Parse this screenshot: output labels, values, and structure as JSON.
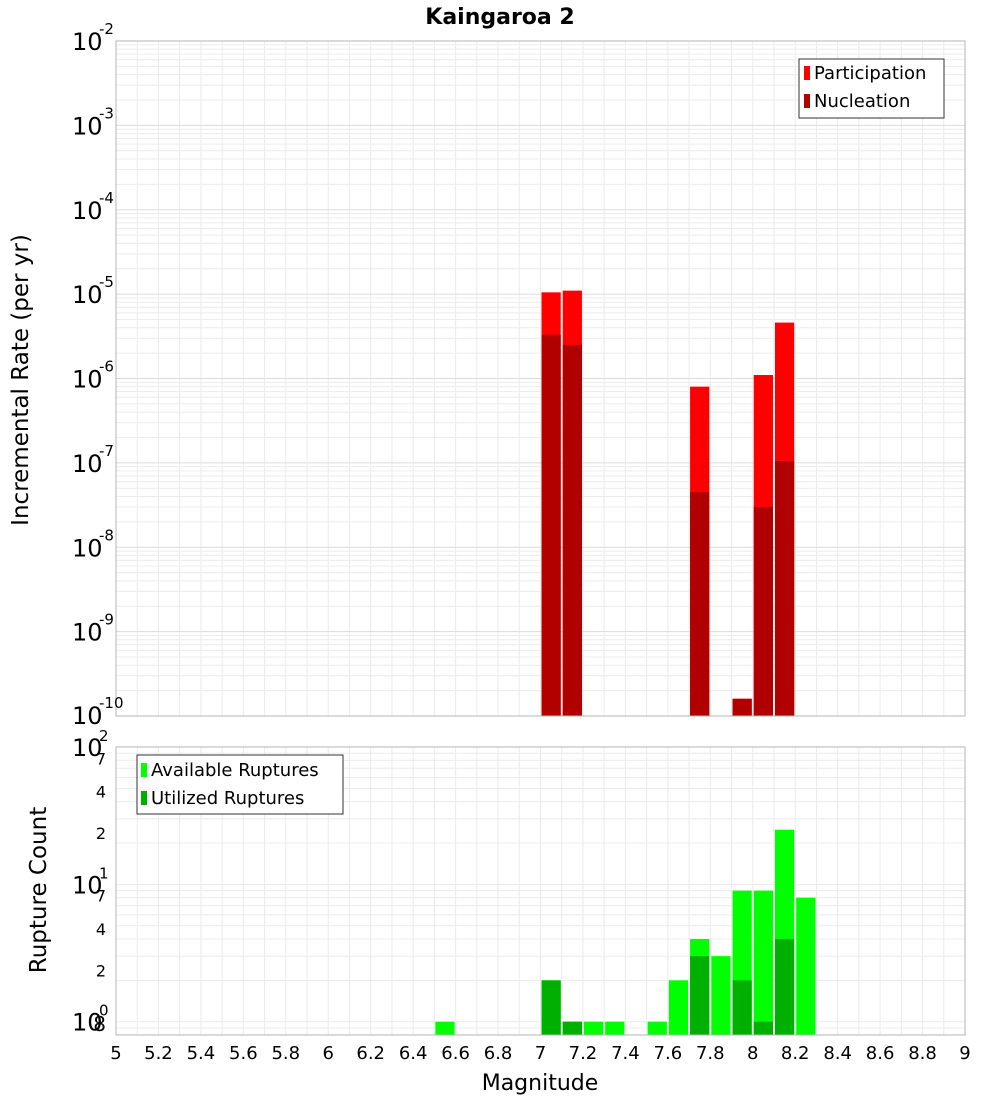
{
  "chart_data": [
    {
      "type": "bar",
      "title": "Kaingaroa 2",
      "xlabel": "",
      "ylabel": "Incremental Rate (per yr)",
      "yscale": "log",
      "xlim": [
        5,
        9
      ],
      "ylim": [
        1e-10,
        0.01
      ],
      "ytick_labels": [
        {
          "base": "10",
          "exp": "-2"
        },
        {
          "base": "10",
          "exp": "-3"
        },
        {
          "base": "10",
          "exp": "-4"
        },
        {
          "base": "10",
          "exp": "-5"
        },
        {
          "base": "10",
          "exp": "-6"
        },
        {
          "base": "10",
          "exp": "-7"
        },
        {
          "base": "10",
          "exp": "-8"
        },
        {
          "base": "10",
          "exp": "-9"
        },
        {
          "base": "10",
          "exp": "-10"
        }
      ],
      "grid": true,
      "legend_position": "top-right",
      "colors": {
        "Participation": "#ff0000",
        "Nucleation": "#b00000"
      },
      "series": [
        {
          "name": "Participation",
          "x": [
            7.05,
            7.15,
            7.75,
            7.95,
            8.05,
            8.15
          ],
          "values": [
            1.05e-05,
            1.1e-05,
            8e-07,
            1.6e-10,
            1.1e-06,
            4.6e-06
          ]
        },
        {
          "name": "Nucleation",
          "x": [
            7.05,
            7.15,
            7.75,
            7.95,
            8.05,
            8.15
          ],
          "values": [
            3.3e-06,
            2.5e-06,
            4.5e-08,
            1.6e-10,
            3e-08,
            1.05e-07
          ]
        }
      ]
    },
    {
      "type": "bar",
      "title": "",
      "xlabel": "Magnitude",
      "ylabel": "Rupture Count",
      "yscale": "log",
      "xlim": [
        5,
        9
      ],
      "ylim": [
        0.8,
        100
      ],
      "x_ticks": [
        "5",
        "5.2",
        "5.4",
        "5.6",
        "5.8",
        "6",
        "6.2",
        "6.4",
        "6.6",
        "6.8",
        "7",
        "7.2",
        "7.4",
        "7.6",
        "7.8",
        "8",
        "8.2",
        "8.4",
        "8.6",
        "8.8",
        "9"
      ],
      "y_major_labels": [
        {
          "base": "10",
          "exp": "2",
          "value": 100
        },
        {
          "base": "10",
          "exp": "1",
          "value": 10
        },
        {
          "base": "10",
          "exp": "0",
          "value": 1
        }
      ],
      "y_minor_labels": [
        {
          "label": "7",
          "value": 70
        },
        {
          "label": "4",
          "value": 40
        },
        {
          "label": "2",
          "value": 20
        },
        {
          "label": "7",
          "value": 7
        },
        {
          "label": "4",
          "value": 4
        },
        {
          "label": "2",
          "value": 2
        },
        {
          "label": "8",
          "value": 0.8
        }
      ],
      "grid": true,
      "legend_position": "top-left",
      "colors": {
        "Available Ruptures": "#00ff00",
        "Utilized Ruptures": "#00b000"
      },
      "series": [
        {
          "name": "Available Ruptures",
          "x": [
            6.55,
            7.05,
            7.15,
            7.25,
            7.35,
            7.55,
            7.65,
            7.75,
            7.85,
            7.95,
            8.05,
            8.15,
            8.25
          ],
          "values": [
            1,
            2,
            1,
            1,
            1,
            1,
            2,
            4,
            3,
            9,
            9,
            25,
            8
          ]
        },
        {
          "name": "Utilized Ruptures",
          "x": [
            7.05,
            7.15,
            7.75,
            7.95,
            8.05,
            8.15
          ],
          "values": [
            2,
            1,
            3,
            2,
            1,
            4
          ]
        }
      ]
    }
  ]
}
